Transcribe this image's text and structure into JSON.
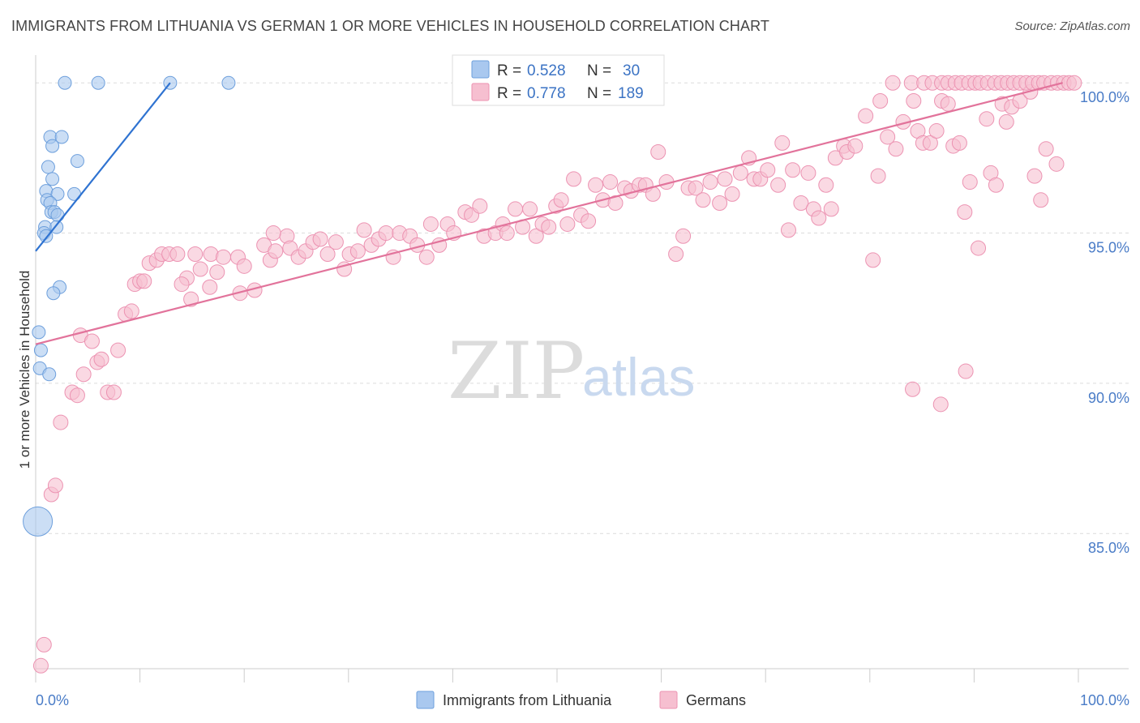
{
  "title": "IMMIGRANTS FROM LITHUANIA VS GERMAN 1 OR MORE VEHICLES IN HOUSEHOLD CORRELATION CHART",
  "source": "Source: ZipAtlas.com",
  "watermark": {
    "zip": "ZIP",
    "atlas": "atlas"
  },
  "colors": {
    "blue_fill": "#a9c8ef",
    "blue_stroke": "#6d9fdc",
    "blue_line": "#2f73d1",
    "pink_fill": "#f6bfd0",
    "pink_stroke": "#ec93b2",
    "pink_line": "#e2739b",
    "tick_label": "#4a7cc7"
  },
  "legend": {
    "rows": [
      {
        "r_label": "R = ",
        "r_value": "0.528",
        "n_label": "N = ",
        "n_value": "30"
      },
      {
        "r_label": "R = ",
        "r_value": "0.778",
        "n_label": "N = ",
        "n_value": "189"
      }
    ]
  },
  "chart_data": {
    "type": "scatter",
    "ylabel": "1 or more Vehicles in Household",
    "xlim": [
      0,
      100
    ],
    "ylim": [
      80.5,
      100.6
    ],
    "x_tick_labels": [
      "0.0%",
      "100.0%"
    ],
    "y_ticks": [
      {
        "value": 100,
        "label": "100.0%"
      },
      {
        "value": 95,
        "label": "95.0%"
      },
      {
        "value": 90,
        "label": "90.0%"
      },
      {
        "value": 85,
        "label": "85.0%"
      }
    ],
    "grid": true,
    "series": [
      {
        "name": "Immigrants from Lithuania",
        "color": "blue",
        "trend": [
          [
            0,
            94.4
          ],
          [
            12.9,
            100.0
          ]
        ],
        "points": [
          [
            2.8,
            100.0
          ],
          [
            6.0,
            100.0
          ],
          [
            12.9,
            100.0
          ],
          [
            18.5,
            100.0
          ],
          [
            1.4,
            98.2
          ],
          [
            2.5,
            98.2
          ],
          [
            1.6,
            97.9
          ],
          [
            4.0,
            97.4
          ],
          [
            1.2,
            97.2
          ],
          [
            1.6,
            96.8
          ],
          [
            1.0,
            96.4
          ],
          [
            2.1,
            96.3
          ],
          [
            3.7,
            96.3
          ],
          [
            1.1,
            96.1
          ],
          [
            1.4,
            96.0
          ],
          [
            1.5,
            95.7
          ],
          [
            1.8,
            95.7
          ],
          [
            2.1,
            95.6
          ],
          [
            0.9,
            95.2
          ],
          [
            2.0,
            95.2
          ],
          [
            0.8,
            95.0
          ],
          [
            1.0,
            94.9
          ],
          [
            2.3,
            93.2
          ],
          [
            1.7,
            93.0
          ],
          [
            0.3,
            91.7
          ],
          [
            0.5,
            91.1
          ],
          [
            0.4,
            90.5
          ],
          [
            1.3,
            90.3
          ],
          [
            0.2,
            85.4
          ]
        ]
      },
      {
        "name": "Germans",
        "color": "pink",
        "trend": [
          [
            0,
            91.3
          ],
          [
            98.5,
            100.0
          ]
        ],
        "points": [
          [
            0.5,
            80.6
          ],
          [
            0.8,
            81.3
          ],
          [
            1.5,
            86.3
          ],
          [
            1.9,
            86.6
          ],
          [
            2.4,
            88.7
          ],
          [
            3.5,
            89.7
          ],
          [
            4.0,
            89.6
          ],
          [
            6.9,
            89.7
          ],
          [
            7.5,
            89.7
          ],
          [
            4.6,
            90.3
          ],
          [
            5.9,
            90.7
          ],
          [
            6.3,
            90.8
          ],
          [
            7.9,
            91.1
          ],
          [
            4.3,
            91.6
          ],
          [
            5.4,
            91.4
          ],
          [
            8.6,
            92.3
          ],
          [
            9.2,
            92.4
          ],
          [
            9.5,
            93.3
          ],
          [
            10.0,
            93.4
          ],
          [
            10.4,
            93.4
          ],
          [
            14.9,
            92.8
          ],
          [
            16.7,
            93.2
          ],
          [
            10.9,
            94.0
          ],
          [
            11.6,
            94.1
          ],
          [
            12.1,
            94.3
          ],
          [
            12.8,
            94.3
          ],
          [
            13.6,
            94.3
          ],
          [
            14.5,
            93.5
          ],
          [
            14.0,
            93.3
          ],
          [
            15.3,
            94.3
          ],
          [
            15.8,
            93.8
          ],
          [
            16.8,
            94.3
          ],
          [
            17.4,
            93.7
          ],
          [
            18.0,
            94.2
          ],
          [
            19.4,
            94.2
          ],
          [
            20.0,
            93.9
          ],
          [
            19.6,
            93.0
          ],
          [
            21.0,
            93.1
          ],
          [
            21.9,
            94.6
          ],
          [
            22.5,
            94.1
          ],
          [
            23.0,
            94.4
          ],
          [
            24.1,
            94.9
          ],
          [
            22.8,
            95.0
          ],
          [
            24.4,
            94.5
          ],
          [
            25.2,
            94.2
          ],
          [
            25.9,
            94.4
          ],
          [
            26.6,
            94.7
          ],
          [
            27.3,
            94.8
          ],
          [
            28.0,
            94.3
          ],
          [
            28.8,
            94.7
          ],
          [
            29.6,
            93.8
          ],
          [
            30.1,
            94.3
          ],
          [
            30.9,
            94.4
          ],
          [
            31.5,
            95.1
          ],
          [
            32.2,
            94.6
          ],
          [
            32.9,
            94.8
          ],
          [
            33.6,
            95.0
          ],
          [
            34.3,
            94.2
          ],
          [
            34.9,
            95.0
          ],
          [
            35.9,
            94.9
          ],
          [
            36.6,
            94.6
          ],
          [
            37.5,
            94.2
          ],
          [
            37.9,
            95.3
          ],
          [
            38.7,
            94.6
          ],
          [
            39.5,
            95.3
          ],
          [
            40.1,
            95.0
          ],
          [
            41.2,
            95.7
          ],
          [
            41.8,
            95.6
          ],
          [
            42.6,
            95.9
          ],
          [
            43.0,
            94.9
          ],
          [
            44.1,
            95.0
          ],
          [
            44.8,
            95.3
          ],
          [
            45.2,
            95.0
          ],
          [
            46.0,
            95.8
          ],
          [
            46.7,
            95.2
          ],
          [
            47.4,
            95.8
          ],
          [
            48.0,
            94.9
          ],
          [
            48.6,
            95.3
          ],
          [
            49.2,
            95.2
          ],
          [
            49.9,
            95.9
          ],
          [
            50.4,
            96.1
          ],
          [
            51.0,
            95.3
          ],
          [
            51.6,
            96.8
          ],
          [
            52.3,
            95.6
          ],
          [
            53.0,
            95.4
          ],
          [
            53.7,
            96.6
          ],
          [
            54.4,
            96.1
          ],
          [
            55.1,
            96.7
          ],
          [
            55.6,
            96.0
          ],
          [
            56.5,
            96.5
          ],
          [
            57.1,
            96.4
          ],
          [
            57.9,
            96.6
          ],
          [
            58.5,
            96.6
          ],
          [
            59.2,
            96.3
          ],
          [
            59.7,
            97.7
          ],
          [
            60.5,
            96.7
          ],
          [
            61.4,
            94.3
          ],
          [
            62.1,
            94.9
          ],
          [
            62.6,
            96.5
          ],
          [
            63.3,
            96.5
          ],
          [
            64.0,
            96.1
          ],
          [
            64.7,
            96.7
          ],
          [
            65.6,
            96.0
          ],
          [
            66.1,
            96.8
          ],
          [
            66.8,
            96.3
          ],
          [
            67.6,
            97.0
          ],
          [
            68.4,
            97.5
          ],
          [
            68.9,
            96.8
          ],
          [
            69.5,
            96.8
          ],
          [
            70.2,
            97.1
          ],
          [
            71.2,
            96.6
          ],
          [
            71.6,
            98.0
          ],
          [
            72.2,
            95.1
          ],
          [
            72.6,
            97.1
          ],
          [
            73.4,
            96.0
          ],
          [
            74.1,
            97.0
          ],
          [
            74.6,
            95.8
          ],
          [
            75.1,
            95.5
          ],
          [
            75.8,
            96.6
          ],
          [
            76.3,
            95.8
          ],
          [
            76.7,
            97.5
          ],
          [
            77.5,
            97.9
          ],
          [
            77.8,
            97.7
          ],
          [
            78.6,
            97.9
          ],
          [
            79.6,
            98.9
          ],
          [
            80.3,
            94.1
          ],
          [
            80.8,
            96.9
          ],
          [
            81.0,
            99.4
          ],
          [
            81.7,
            98.2
          ],
          [
            82.5,
            97.8
          ],
          [
            83.2,
            98.7
          ],
          [
            84.2,
            99.4
          ],
          [
            84.6,
            98.4
          ],
          [
            85.1,
            98.0
          ],
          [
            85.8,
            98.0
          ],
          [
            86.4,
            98.4
          ],
          [
            86.9,
            99.4
          ],
          [
            87.5,
            99.3
          ],
          [
            88.0,
            97.9
          ],
          [
            88.6,
            98.0
          ],
          [
            89.1,
            95.7
          ],
          [
            89.6,
            96.7
          ],
          [
            90.4,
            94.5
          ],
          [
            91.2,
            98.8
          ],
          [
            91.6,
            97.0
          ],
          [
            92.1,
            96.6
          ],
          [
            92.7,
            99.3
          ],
          [
            93.1,
            98.7
          ],
          [
            93.6,
            99.2
          ],
          [
            94.4,
            99.4
          ],
          [
            95.4,
            99.7
          ],
          [
            95.8,
            96.9
          ],
          [
            96.4,
            96.1
          ],
          [
            96.9,
            97.8
          ],
          [
            97.9,
            97.3
          ],
          [
            84.1,
            89.8
          ],
          [
            86.8,
            89.3
          ],
          [
            89.2,
            90.4
          ],
          [
            82.2,
            100.0
          ],
          [
            84.0,
            100.0
          ],
          [
            85.2,
            100.0
          ],
          [
            86.0,
            100.0
          ],
          [
            86.9,
            100.0
          ],
          [
            87.5,
            100.0
          ],
          [
            88.2,
            100.0
          ],
          [
            88.8,
            100.0
          ],
          [
            89.5,
            100.0
          ],
          [
            90.1,
            100.0
          ],
          [
            90.6,
            100.0
          ],
          [
            91.3,
            100.0
          ],
          [
            92.0,
            100.0
          ],
          [
            92.6,
            100.0
          ],
          [
            93.2,
            100.0
          ],
          [
            93.8,
            100.0
          ],
          [
            94.4,
            100.0
          ],
          [
            95.0,
            100.0
          ],
          [
            95.6,
            100.0
          ],
          [
            96.2,
            100.0
          ],
          [
            96.7,
            100.0
          ],
          [
            97.4,
            100.0
          ],
          [
            98.0,
            100.0
          ],
          [
            98.6,
            100.0
          ],
          [
            99.1,
            100.0
          ],
          [
            99.6,
            100.0
          ]
        ]
      }
    ]
  }
}
